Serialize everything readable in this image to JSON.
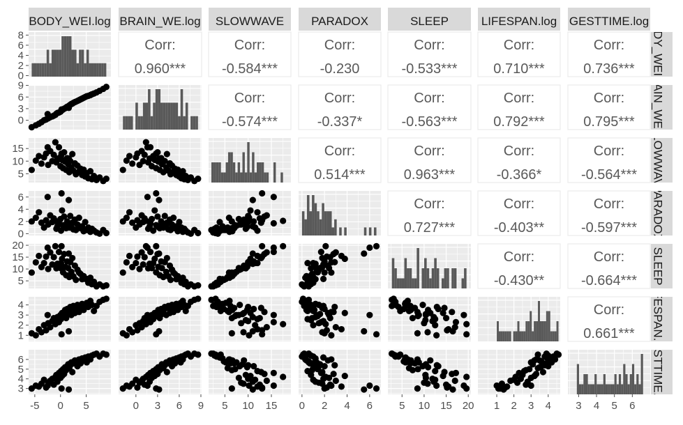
{
  "chart_data": {
    "type": "scatter",
    "variables": [
      "BODY_WEI.log",
      "BRAIN_WE.log",
      "SLOWWAVE",
      "PARADOX",
      "SLEEP",
      "LIFESPAN.log",
      "GESTTIME.log"
    ],
    "row_labels": [
      "BODY_WEI.log",
      "BRAIN_WE.log",
      "SLOWWAVE",
      "PARADOX",
      "SLEEP",
      "LIFESPAN.log",
      "GESTTIME.log"
    ],
    "corr_label": "Corr:",
    "correlations": [
      {
        "row": 0,
        "col": 1,
        "label": "0.960***"
      },
      {
        "row": 0,
        "col": 2,
        "label": "-0.584***"
      },
      {
        "row": 0,
        "col": 3,
        "label": "-0.230"
      },
      {
        "row": 0,
        "col": 4,
        "label": "-0.533***"
      },
      {
        "row": 0,
        "col": 5,
        "label": "0.710***"
      },
      {
        "row": 0,
        "col": 6,
        "label": "0.736***"
      },
      {
        "row": 1,
        "col": 2,
        "label": "-0.574***"
      },
      {
        "row": 1,
        "col": 3,
        "label": "-0.337*"
      },
      {
        "row": 1,
        "col": 4,
        "label": "-0.563***"
      },
      {
        "row": 1,
        "col": 5,
        "label": "0.792***"
      },
      {
        "row": 1,
        "col": 6,
        "label": "0.795***"
      },
      {
        "row": 2,
        "col": 3,
        "label": "0.514***"
      },
      {
        "row": 2,
        "col": 4,
        "label": "0.963***"
      },
      {
        "row": 2,
        "col": 5,
        "label": "-0.366*"
      },
      {
        "row": 2,
        "col": 6,
        "label": "-0.564***"
      },
      {
        "row": 3,
        "col": 4,
        "label": "0.727***"
      },
      {
        "row": 3,
        "col": 5,
        "label": "-0.403**"
      },
      {
        "row": 3,
        "col": 6,
        "label": "-0.597***"
      },
      {
        "row": 4,
        "col": 5,
        "label": "-0.430**"
      },
      {
        "row": 4,
        "col": 6,
        "label": "-0.664***"
      },
      {
        "row": 5,
        "col": 6,
        "label": "0.661***"
      }
    ],
    "x_axes": [
      {
        "range": [
          -6.2,
          9.8
        ],
        "ticks": [
          -5,
          0,
          5
        ],
        "tick_labels": [
          "-5",
          "0",
          "5"
        ]
      },
      {
        "range": [
          -2.4,
          9.1
        ],
        "ticks": [
          0,
          3,
          6,
          9
        ],
        "tick_labels": [
          "0",
          "3",
          "6",
          "9"
        ]
      },
      {
        "range": [
          1.5,
          19.2
        ],
        "ticks": [
          5,
          10,
          15
        ],
        "tick_labels": [
          "5",
          "10",
          "15"
        ]
      },
      {
        "range": [
          -0.3,
          7.0
        ],
        "ticks": [
          0,
          2,
          4,
          6
        ],
        "tick_labels": [
          "0",
          "2",
          "4",
          "6"
        ]
      },
      {
        "range": [
          1.8,
          20.6
        ],
        "ticks": [
          5,
          10,
          15,
          20
        ],
        "tick_labels": [
          "5",
          "10",
          "15",
          "20"
        ]
      },
      {
        "range": [
          -0.1,
          4.7
        ],
        "ticks": [
          1,
          2,
          3,
          4
        ],
        "tick_labels": [
          "1",
          "2",
          "3",
          "4"
        ]
      },
      {
        "range": [
          2.4,
          7.0
        ],
        "ticks": [
          3,
          4,
          5,
          6
        ],
        "tick_labels": [
          "3",
          "4",
          "5",
          "6"
        ]
      }
    ],
    "y_axes": [
      {
        "range": [
          -0.2,
          8.6
        ],
        "ticks": [
          0,
          2,
          4,
          6,
          8
        ],
        "tick_labels": [
          "0",
          "2",
          "4",
          "6",
          "8"
        ]
      },
      {
        "range": [
          -2.4,
          9.1
        ],
        "ticks": [
          0,
          3,
          6,
          9
        ],
        "tick_labels": [
          "0",
          "3",
          "6",
          "9"
        ]
      },
      {
        "range": [
          1.5,
          19.2
        ],
        "ticks": [
          5,
          10,
          15
        ],
        "tick_labels": [
          "5",
          "10",
          "15"
        ]
      },
      {
        "range": [
          -0.3,
          7.0
        ],
        "ticks": [
          0,
          2,
          4,
          6
        ],
        "tick_labels": [
          "0",
          "2",
          "4",
          "6"
        ]
      },
      {
        "range": [
          1.8,
          20.6
        ],
        "ticks": [
          5,
          10,
          15,
          20
        ],
        "tick_labels": [
          "5",
          "10",
          "15",
          "20"
        ]
      },
      {
        "range": [
          0.4,
          4.8
        ],
        "ticks": [
          1,
          2,
          3,
          4
        ],
        "tick_labels": [
          "1",
          "2",
          "3",
          "4"
        ]
      },
      {
        "range": [
          2.4,
          7.0
        ],
        "ticks": [
          3,
          4,
          5,
          6
        ],
        "tick_labels": [
          "3",
          "4",
          "5",
          "6"
        ]
      }
    ],
    "observations": [
      [
        -5.6,
        -1.8,
        6.5,
        2.0,
        8.5,
        1.2,
        3.0
      ],
      [
        -4.8,
        -1.3,
        10.2,
        2.6,
        12.8,
        1.0,
        3.3
      ],
      [
        -4.2,
        -0.9,
        12.0,
        3.5,
        15.5,
        1.6,
        3.2
      ],
      [
        -3.7,
        -0.5,
        9.0,
        1.8,
        10.8,
        1.3,
        3.5
      ],
      [
        -3.2,
        0.0,
        11.5,
        1.0,
        12.5,
        2.0,
        3.9
      ],
      [
        -2.8,
        0.2,
        13.0,
        2.2,
        15.2,
        1.5,
        3.1
      ],
      [
        -2.4,
        0.5,
        8.5,
        1.5,
        10.0,
        2.2,
        3.6
      ],
      [
        -2.0,
        0.8,
        14.0,
        3.0,
        17.0,
        1.8,
        3.8
      ],
      [
        -1.6,
        1.0,
        10.0,
        1.9,
        11.9,
        2.4,
        4.0
      ],
      [
        -1.3,
        1.2,
        12.5,
        2.5,
        15.0,
        2.7,
        3.4
      ],
      [
        -1.0,
        1.4,
        17.5,
        2.1,
        19.6,
        2.1,
        4.2
      ],
      [
        -0.8,
        1.7,
        9.5,
        0.8,
        10.3,
        2.5,
        4.4
      ],
      [
        -0.6,
        1.9,
        11.0,
        1.2,
        12.2,
        2.8,
        3.7
      ],
      [
        -0.3,
        2.0,
        15.5,
        1.7,
        17.2,
        2.3,
        4.6
      ],
      [
        0.0,
        2.2,
        8.0,
        2.4,
        10.4,
        3.0,
        4.1
      ],
      [
        0.1,
        2.4,
        12.0,
        0.5,
        12.5,
        2.6,
        4.8
      ],
      [
        0.3,
        2.6,
        10.5,
        3.8,
        14.3,
        3.2,
        4.3
      ],
      [
        0.5,
        2.8,
        7.2,
        1.4,
        8.6,
        2.9,
        5.0
      ],
      [
        0.7,
        3.0,
        13.5,
        2.8,
        16.3,
        3.3,
        4.5
      ],
      [
        0.9,
        3.1,
        9.8,
        1.1,
        10.9,
        3.5,
        5.2
      ],
      [
        1.1,
        3.3,
        6.5,
        0.9,
        7.4,
        2.7,
        4.9
      ],
      [
        1.3,
        3.5,
        11.2,
        2.0,
        13.2,
        3.6,
        5.3
      ],
      [
        1.5,
        3.6,
        8.8,
        1.6,
        10.4,
        3.1,
        5.5
      ],
      [
        1.7,
        3.8,
        5.6,
        1.0,
        6.6,
        3.4,
        5.1
      ],
      [
        1.9,
        4.0,
        10.0,
        2.9,
        12.9,
        3.8,
        5.4
      ],
      [
        2.1,
        4.2,
        7.5,
        1.3,
        8.8,
        3.0,
        5.7
      ],
      [
        2.3,
        4.3,
        12.8,
        1.8,
        14.6,
        3.7,
        4.7
      ],
      [
        2.5,
        4.5,
        6.2,
        0.7,
        6.9,
        3.9,
        5.6
      ],
      [
        2.8,
        4.7,
        9.1,
        2.3,
        11.4,
        3.2,
        5.9
      ],
      [
        3.0,
        4.8,
        4.8,
        0.6,
        5.4,
        3.6,
        5.8
      ],
      [
        3.3,
        5.0,
        8.2,
        1.5,
        9.7,
        4.0,
        5.3
      ],
      [
        3.6,
        5.2,
        5.9,
        2.6,
        8.5,
        3.3,
        6.0
      ],
      [
        3.9,
        5.4,
        7.0,
        0.9,
        7.9,
        3.7,
        5.6
      ],
      [
        4.2,
        5.6,
        4.5,
        1.2,
        5.7,
        4.1,
        6.1
      ],
      [
        4.5,
        5.8,
        6.6,
        0.4,
        7.0,
        3.5,
        5.9
      ],
      [
        4.8,
        6.0,
        3.9,
        1.9,
        5.8,
        3.9,
        6.2
      ],
      [
        5.1,
        6.2,
        5.2,
        0.6,
        5.8,
        4.2,
        5.7
      ],
      [
        5.4,
        6.3,
        3.2,
        1.0,
        4.2,
        3.8,
        6.3
      ],
      [
        5.8,
        6.5,
        6.0,
        0.3,
        6.3,
        4.4,
        6.0
      ],
      [
        6.1,
        6.7,
        2.8,
        0.8,
        3.6,
        4.0,
        6.4
      ],
      [
        6.5,
        6.9,
        4.1,
        0.5,
        4.6,
        3.4,
        6.5
      ],
      [
        7.0,
        7.2,
        2.5,
        0.2,
        2.7,
        3.9,
        6.6
      ],
      [
        7.6,
        7.6,
        3.5,
        0.0,
        3.5,
        4.3,
        6.3
      ],
      [
        8.3,
        8.1,
        2.1,
        0.6,
        2.7,
        4.5,
        6.6
      ],
      [
        8.9,
        8.6,
        3.0,
        0.1,
        3.1,
        4.6,
        6.5
      ],
      [
        -2.5,
        1.6,
        15.5,
        6.0,
        19.0,
        3.0,
        3.3
      ],
      [
        0.2,
        2.8,
        13.0,
        6.6,
        19.6,
        1.1,
        3.0
      ],
      [
        1.6,
        3.2,
        11.0,
        5.5,
        16.5,
        1.4,
        2.9
      ]
    ]
  }
}
